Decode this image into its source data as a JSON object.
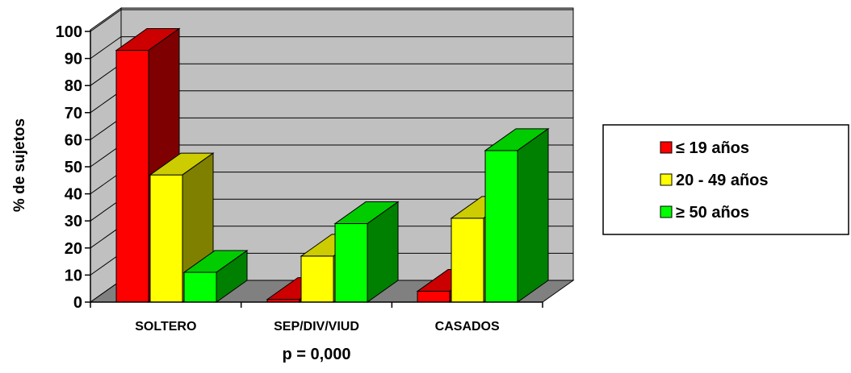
{
  "chart_data": {
    "type": "bar",
    "categories": [
      "SOLTERO",
      "SEP/DIV/VIUD",
      "CASADOS"
    ],
    "series": [
      {
        "name": "≤ 19 años",
        "values": [
          93,
          1,
          4
        ],
        "color": "#ff0000",
        "top_color": "#cc0000",
        "side_color": "#7f0000"
      },
      {
        "name": "20 - 49 años",
        "values": [
          47,
          17,
          31
        ],
        "color": "#ffff00",
        "top_color": "#cccc00",
        "side_color": "#808000"
      },
      {
        "name": "≥ 50 años",
        "values": [
          11,
          29,
          56
        ],
        "color": "#00ff00",
        "top_color": "#00cc00",
        "side_color": "#008000"
      }
    ],
    "ylabel": "% de sujetos",
    "xlabel": "p = 0,000",
    "ylim": [
      0,
      100
    ],
    "yticks": [
      0,
      10,
      20,
      30,
      40,
      50,
      60,
      70,
      80,
      90,
      100
    ],
    "grid": true,
    "legend_position": "right",
    "wall_color": "#c0c0c0",
    "floor_color": "#808080"
  }
}
